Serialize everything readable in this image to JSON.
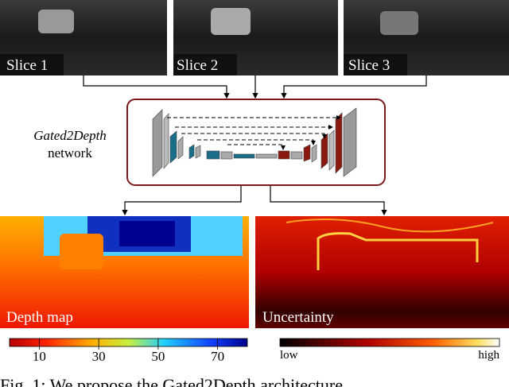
{
  "slices": [
    "Slice 1",
    "Slice 2",
    "Slice 3"
  ],
  "network": {
    "name": "Gated2Depth",
    "label": "network"
  },
  "outputs": [
    "Depth map",
    "Uncertainty"
  ],
  "depth_colorbar": {
    "range": [
      0,
      80
    ],
    "ticks": [
      10,
      30,
      50,
      70
    ]
  },
  "uncertainty_colorbar": {
    "low": "low",
    "high": "high"
  },
  "caption": "Fig. 1: We propose the Gated2Depth architecture"
}
